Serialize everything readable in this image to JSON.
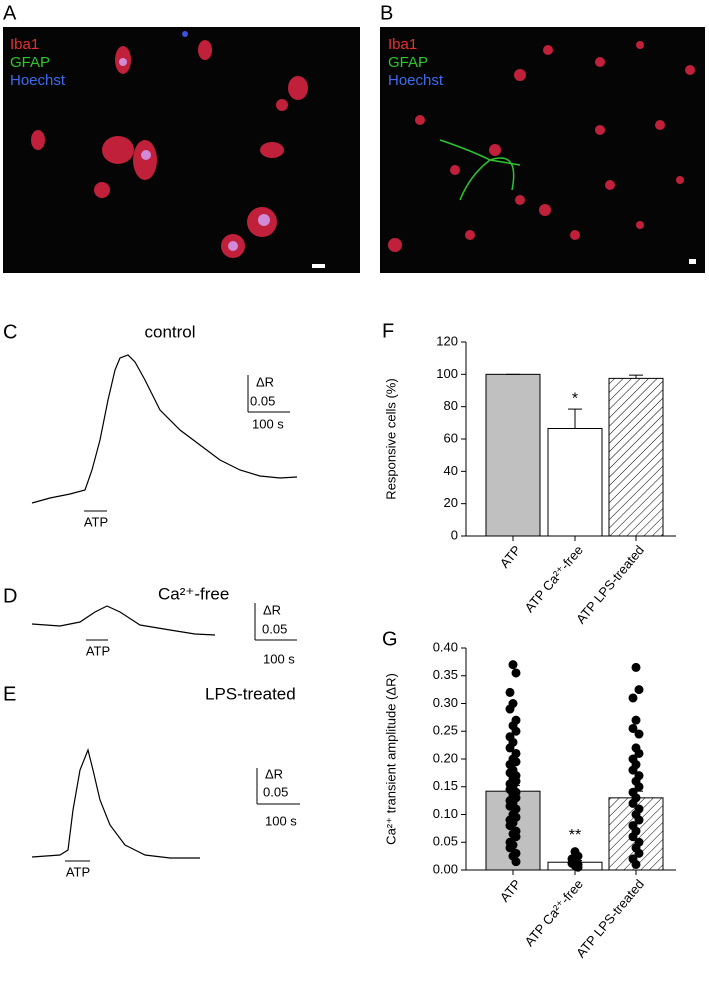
{
  "images": [
    {
      "letter": "A",
      "labels": [
        "Iba1",
        "GFAP",
        "Hoechst"
      ]
    },
    {
      "letter": "B",
      "labels": [
        "Iba1",
        "GFAP",
        "Hoechst"
      ]
    }
  ],
  "traces": [
    {
      "letter": "C",
      "title": "control",
      "stimulus": "ATP",
      "scale_y_label": "ΔR",
      "scale_y": "0.05",
      "scale_x": "100 s"
    },
    {
      "letter": "D",
      "title": "Ca²⁺-free",
      "stimulus": "ATP",
      "scale_y_label": "ΔR",
      "scale_y": "0.05",
      "scale_x": "100 s"
    },
    {
      "letter": "E",
      "title": "LPS-treated",
      "stimulus": "ATP",
      "scale_y_label": "ΔR",
      "scale_y": "0.05",
      "scale_x": "100 s"
    }
  ],
  "chart_data": [
    {
      "type": "bar",
      "letter": "F",
      "ylabel": "Responsive cells (%)",
      "categories": [
        "ATP",
        "ATP Ca²⁺-free",
        "ATP LPS-treated"
      ],
      "values": [
        100,
        66.5,
        97.5
      ],
      "errors": [
        0,
        12,
        2
      ],
      "annotation": "*",
      "colors": [
        "#c0c0c0",
        "#ffffff",
        "hatch"
      ],
      "ylim": [
        0,
        120
      ],
      "yticks": [
        0,
        20,
        40,
        60,
        80,
        100,
        120
      ]
    },
    {
      "type": "bar",
      "letter": "G",
      "ylabel": "Ca²⁺ transient amplitude (ΔR)",
      "categories": [
        "ATP",
        "ATP Ca²⁺-free",
        "ATP LPS-treated"
      ],
      "values": [
        0.142,
        0.014,
        0.13
      ],
      "errors": [
        0.01,
        0.003,
        0.012
      ],
      "annotation": "**",
      "colors": [
        "#c0c0c0",
        "#ffffff",
        "hatch"
      ],
      "points": [
        [
          0.37,
          0.355,
          0.32,
          0.3,
          0.29,
          0.27,
          0.26,
          0.25,
          0.24,
          0.23,
          0.22,
          0.21,
          0.2,
          0.195,
          0.19,
          0.18,
          0.175,
          0.17,
          0.165,
          0.16,
          0.155,
          0.15,
          0.145,
          0.14,
          0.135,
          0.13,
          0.125,
          0.12,
          0.115,
          0.11,
          0.1,
          0.095,
          0.09,
          0.085,
          0.08,
          0.07,
          0.065,
          0.06,
          0.05,
          0.045,
          0.04,
          0.03,
          0.025,
          0.015
        ],
        [
          0.033,
          0.025,
          0.02,
          0.015,
          0.012,
          0.01,
          0.008,
          0.005
        ],
        [
          0.365,
          0.325,
          0.31,
          0.27,
          0.255,
          0.245,
          0.22,
          0.21,
          0.2,
          0.19,
          0.18,
          0.17,
          0.16,
          0.15,
          0.14,
          0.13,
          0.12,
          0.11,
          0.1,
          0.09,
          0.08,
          0.07,
          0.06,
          0.05,
          0.04,
          0.03,
          0.02,
          0.01
        ]
      ],
      "ylim": [
        0,
        0.4
      ],
      "yticks": [
        {
          "value": 0,
          "label": "0.00"
        },
        {
          "value": 0.05,
          "label": "0.05"
        },
        {
          "value": 0.1,
          "label": "0.10"
        },
        {
          "value": 0.15,
          "label": "0.15"
        },
        {
          "value": 0.2,
          "label": "0.20"
        },
        {
          "value": 0.25,
          "label": "0.25"
        },
        {
          "value": 0.3,
          "label": "0.30"
        },
        {
          "value": 0.35,
          "label": "0.35"
        },
        {
          "value": 0.4,
          "label": "0.40"
        }
      ]
    }
  ]
}
